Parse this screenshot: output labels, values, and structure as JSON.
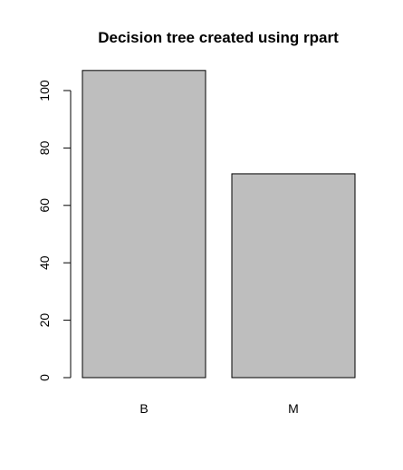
{
  "chart_data": {
    "type": "bar",
    "title": "Decision tree created using rpart",
    "xlabel": "",
    "ylabel": "",
    "categories": [
      "B",
      "M"
    ],
    "values": [
      107,
      71
    ],
    "ylim": [
      0,
      100
    ],
    "y_ticks": [
      0,
      20,
      40,
      60,
      80,
      100
    ],
    "grid": false,
    "legend": "none",
    "colors": {
      "bar_fill": "#bebebe",
      "bar_stroke": "#000000",
      "axis": "#000000",
      "background": "#ffffff"
    }
  }
}
